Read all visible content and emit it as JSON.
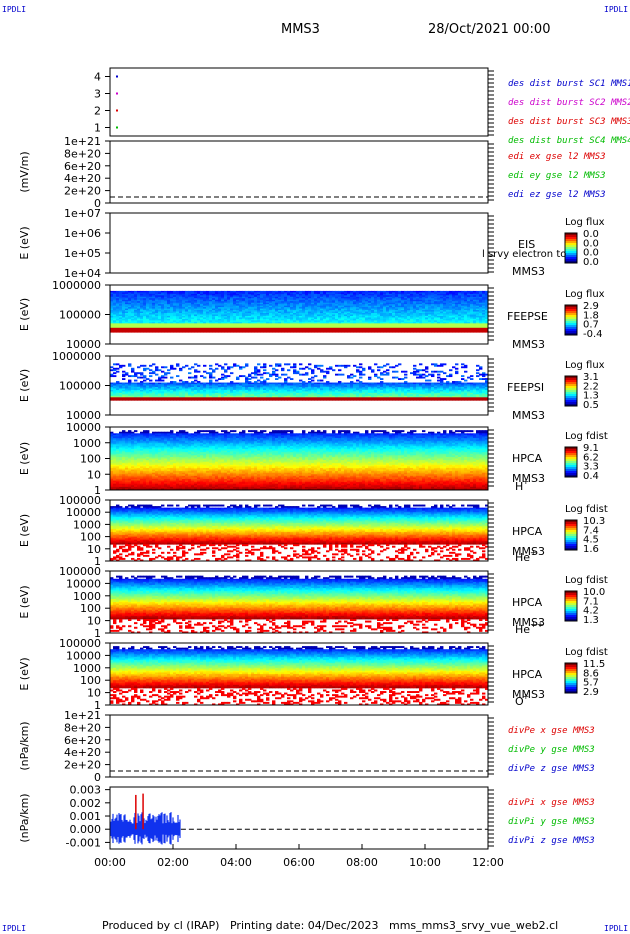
{
  "corner_tag": "IPDLI",
  "header": {
    "spacecraft": "MMS3",
    "date": "28/Oct/2021 00:00"
  },
  "footer": {
    "produced": "Produced by cl (IRAP)",
    "printing": "Printing date: 04/Dec/2023",
    "script": "mms_mms3_srvy_vue_web2.cl"
  },
  "time_axis": {
    "ticks": [
      "00:00",
      "02:00",
      "04:00",
      "06:00",
      "08:00",
      "10:00",
      "12:00"
    ]
  },
  "chart_data": [
    {
      "id": "burst",
      "type": "scatter",
      "ylim": [
        0.5,
        4.5
      ],
      "yticks": [
        "1",
        "2",
        "3",
        "4"
      ],
      "series": [
        {
          "name": "des dist burst SC1 MMS1",
          "color": "#0000cc",
          "y": 4
        },
        {
          "name": "des dist burst SC2 MMS2",
          "color": "#cc00cc",
          "y": 3
        },
        {
          "name": "des dist burst SC3 MMS3",
          "color": "#dd0000",
          "y": 2
        },
        {
          "name": "des dist burst SC4 MMS4",
          "color": "#00bb00",
          "y": 1
        }
      ]
    },
    {
      "id": "edi",
      "type": "line",
      "ylabel": "(mV/m)",
      "yticks": [
        "1e+21",
        "8e+20",
        "6e+20",
        "4e+20",
        "2e+20",
        "0"
      ],
      "series": [
        {
          "name": "edi ex gse l2 MMS3",
          "color": "#dd0000"
        },
        {
          "name": "edi ey gse l2 MMS3",
          "color": "#00bb00"
        },
        {
          "name": "edi ez gse l2 MMS3",
          "color": "#0000cc"
        }
      ]
    },
    {
      "id": "eis",
      "type": "heatmap",
      "ylabel": "E (eV)",
      "yticks": [
        "1e+07",
        "1e+06",
        "1e+05",
        "1e+04"
      ],
      "instrument": "EIS",
      "sc": "MMS3",
      "overlay": "l srvy electron to",
      "colorbar": {
        "title": "Log flux",
        "ticks": [
          "0.0",
          "0.0",
          "0.0",
          "0.0"
        ]
      }
    },
    {
      "id": "feepse",
      "type": "heatmap",
      "ylabel": "E (eV)",
      "yticks": [
        "1000000",
        "100000",
        "10000"
      ],
      "instrument": "FEEPSE",
      "sc": "MMS3",
      "colorbar": {
        "title": "Log flux",
        "ticks": [
          "2.9",
          "1.8",
          "0.7",
          "-0.4"
        ]
      }
    },
    {
      "id": "feepsi",
      "type": "heatmap",
      "ylabel": "E (eV)",
      "yticks": [
        "1000000",
        "100000",
        "10000"
      ],
      "instrument": "FEEPSI",
      "sc": "MMS3",
      "colorbar": {
        "title": "Log flux",
        "ticks": [
          "3.1",
          "2.2",
          "1.3",
          "0.5"
        ]
      }
    },
    {
      "id": "hpca_h",
      "type": "heatmap",
      "ylabel": "E (eV)",
      "yticks": [
        "10000",
        "1000",
        "100",
        "10",
        "1"
      ],
      "instrument": "HPCA",
      "sc": "MMS3",
      "species": "H",
      "charge": "+",
      "colorbar": {
        "title": "Log fdist",
        "ticks": [
          "9.1",
          "6.2",
          "3.3",
          "0.4"
        ]
      }
    },
    {
      "id": "hpca_he",
      "type": "heatmap",
      "ylabel": "E (eV)",
      "yticks": [
        "100000",
        "10000",
        "1000",
        "100",
        "10",
        "1"
      ],
      "instrument": "HPCA",
      "sc": "MMS3",
      "species": "He",
      "charge": "+",
      "colorbar": {
        "title": "Log fdist",
        "ticks": [
          "10.3",
          "7.4",
          "4.5",
          "1.6"
        ]
      }
    },
    {
      "id": "hpca_he2",
      "type": "heatmap",
      "ylabel": "E (eV)",
      "yticks": [
        "100000",
        "10000",
        "1000",
        "100",
        "10",
        "1"
      ],
      "instrument": "HPCA",
      "sc": "MMS3",
      "species": "He",
      "charge": "++",
      "colorbar": {
        "title": "Log fdist",
        "ticks": [
          "10.0",
          "7.1",
          "4.2",
          "1.3"
        ]
      }
    },
    {
      "id": "hpca_o",
      "type": "heatmap",
      "ylabel": "E (eV)",
      "yticks": [
        "100000",
        "10000",
        "1000",
        "100",
        "10",
        "1"
      ],
      "instrument": "HPCA",
      "sc": "MMS3",
      "species": "O",
      "charge": "+",
      "colorbar": {
        "title": "Log fdist",
        "ticks": [
          "11.5",
          "8.6",
          "5.7",
          "2.9"
        ]
      }
    },
    {
      "id": "divpe",
      "type": "line",
      "ylabel": "(nPa/km)",
      "yticks": [
        "1e+21",
        "8e+20",
        "6e+20",
        "4e+20",
        "2e+20",
        "0"
      ],
      "series": [
        {
          "name": "divPe x gse MMS3",
          "color": "#dd0000"
        },
        {
          "name": "divPe y gse MMS3",
          "color": "#00bb00"
        },
        {
          "name": "divPe z gse MMS3",
          "color": "#0000cc"
        }
      ]
    },
    {
      "id": "divpi",
      "type": "line",
      "ylabel": "(nPa/km)",
      "ylim": [
        -0.0015,
        0.0032
      ],
      "yticks": [
        "0.003",
        "0.002",
        "0.001",
        "0.000",
        "-0.001"
      ],
      "ytick_values": [
        0.003,
        0.002,
        0.001,
        0,
        -0.001
      ],
      "data_end_hour": 2.25,
      "spikes": [
        {
          "t": 0.82,
          "y": 0.0026
        },
        {
          "t": 1.05,
          "y": 0.0027
        }
      ],
      "series": [
        {
          "name": "divPi x gse MMS3",
          "color": "#dd0000"
        },
        {
          "name": "divPi y gse MMS3",
          "color": "#00bb00"
        },
        {
          "name": "divPi z gse MMS3",
          "color": "#0000cc"
        }
      ]
    }
  ]
}
